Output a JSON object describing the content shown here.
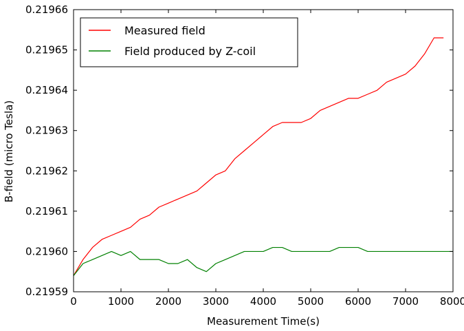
{
  "chart_data": {
    "type": "line",
    "xlabel": "Measurement Time(s)",
    "ylabel": "B-field (micro Tesla)",
    "xlim": [
      0,
      8000
    ],
    "ylim": [
      0.21959,
      0.21966
    ],
    "x_ticks": [
      0,
      1000,
      2000,
      3000,
      4000,
      5000,
      6000,
      7000,
      8000
    ],
    "x_tick_labels": [
      "0",
      "1000",
      "2000",
      "3000",
      "4000",
      "5000",
      "6000",
      "7000",
      "8000"
    ],
    "y_ticks": [
      0.21959,
      0.2196,
      0.21961,
      0.21962,
      0.21963,
      0.21964,
      0.21965,
      0.21966
    ],
    "y_tick_labels": [
      "0.21959",
      "0.21960",
      "0.21961",
      "0.21962",
      "0.21963",
      "0.21964",
      "0.21965",
      "0.21966"
    ],
    "grid": false,
    "legend_position": "top-left",
    "series": [
      {
        "name": "Measured field",
        "color": "#ff0000",
        "x": [
          0,
          200,
          400,
          600,
          800,
          1000,
          1200,
          1400,
          1600,
          1800,
          2000,
          2200,
          2400,
          2600,
          2800,
          3000,
          3200,
          3400,
          3600,
          3800,
          4000,
          4200,
          4400,
          4600,
          4800,
          5000,
          5200,
          5400,
          5600,
          5800,
          6000,
          6200,
          6400,
          6600,
          6800,
          7000,
          7200,
          7400,
          7600,
          7800
        ],
        "y": [
          0.219594,
          0.219598,
          0.219601,
          0.219603,
          0.219604,
          0.219605,
          0.219606,
          0.219608,
          0.219609,
          0.219611,
          0.219612,
          0.219613,
          0.219614,
          0.219615,
          0.219617,
          0.219619,
          0.21962,
          0.219623,
          0.219625,
          0.219627,
          0.219629,
          0.219631,
          0.219632,
          0.219632,
          0.219632,
          0.219633,
          0.219635,
          0.219636,
          0.219637,
          0.219638,
          0.219638,
          0.219639,
          0.21964,
          0.219642,
          0.219643,
          0.219644,
          0.219646,
          0.219649,
          0.219653,
          0.219653
        ]
      },
      {
        "name": "Field produced by Z-coil",
        "color": "#008000",
        "x": [
          0,
          200,
          400,
          600,
          800,
          1000,
          1200,
          1400,
          1600,
          1800,
          2000,
          2200,
          2400,
          2600,
          2800,
          3000,
          3200,
          3400,
          3600,
          3800,
          4000,
          4200,
          4400,
          4600,
          4800,
          5000,
          5200,
          5400,
          5600,
          5800,
          6000,
          6200,
          6400,
          6600,
          6800,
          7000,
          7200,
          7400,
          7600,
          7800,
          8000
        ],
        "y": [
          0.219594,
          0.219597,
          0.219598,
          0.219599,
          0.2196,
          0.219599,
          0.2196,
          0.219598,
          0.219598,
          0.219598,
          0.219597,
          0.219597,
          0.219598,
          0.219596,
          0.219595,
          0.219597,
          0.219598,
          0.219599,
          0.2196,
          0.2196,
          0.2196,
          0.219601,
          0.219601,
          0.2196,
          0.2196,
          0.2196,
          0.2196,
          0.2196,
          0.219601,
          0.219601,
          0.219601,
          0.2196,
          0.2196,
          0.2196,
          0.2196,
          0.2196,
          0.2196,
          0.2196,
          0.2196,
          0.2196,
          0.2196
        ]
      }
    ]
  }
}
